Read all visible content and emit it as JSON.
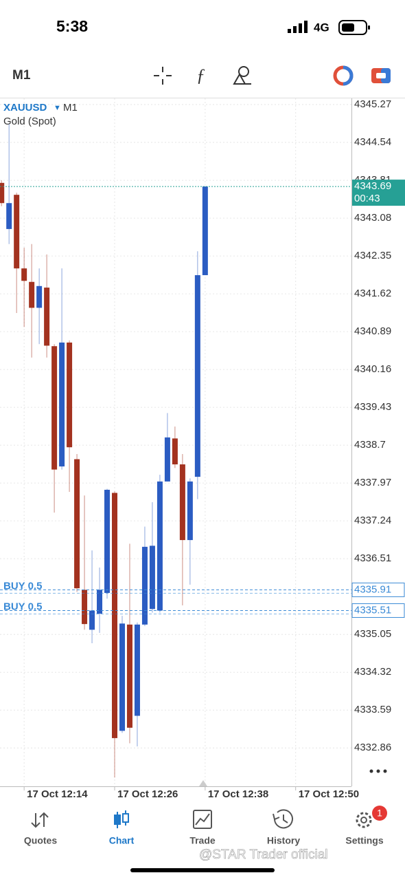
{
  "status": {
    "time": "5:38",
    "network": "4G"
  },
  "toolbar": {
    "timeframe": "M1"
  },
  "chart_data": {
    "type": "candlestick",
    "symbol": "XAUUSD",
    "timeframe": "M1",
    "description": "Gold (Spot)",
    "up_color": "#2b5cc2",
    "down_color": "#a3321f",
    "open": [
      4343.76,
      4342.87,
      4343.53,
      4342.11,
      4341.85,
      4341.35,
      4341.74,
      4340.61,
      4338.29,
      4340.68,
      4338.43,
      4335.91,
      4335.14,
      4335.45,
      4335.85,
      4337.78,
      4333.19,
      4335.24,
      4333.48,
      4335.24,
      4335.54,
      4335.51,
      4338.0,
      4338.83,
      4338.33,
      4336.87,
      4338.09,
      4341.98
    ],
    "high": [
      4343.81,
      4344.9,
      4343.57,
      4342.51,
      4342.58,
      4342.11,
      4342.38,
      4340.65,
      4342.11,
      4340.72,
      4338.53,
      4337.73,
      4336.67,
      4336.34,
      4337.86,
      4337.81,
      4335.41,
      4336.8,
      4335.28,
      4337.13,
      4337.6,
      4338.13,
      4339.32,
      4339.06,
      4338.53,
      4338.06,
      4342.44,
      4343.69
    ],
    "low": [
      4343.31,
      4342.58,
      4341.25,
      4340.98,
      4340.39,
      4340.65,
      4340.39,
      4337.4,
      4338.23,
      4337.8,
      4335.87,
      4335.14,
      4334.88,
      4335.08,
      4335.74,
      4332.29,
      4333.15,
      4332.95,
      4332.89,
      4335.21,
      4335.47,
      4335.47,
      4338.0,
      4338.26,
      4335.61,
      4336.01,
      4337.66,
      4341.98
    ],
    "close": [
      4343.37,
      4343.37,
      4342.11,
      4341.87,
      4341.35,
      4341.77,
      4340.62,
      4338.23,
      4340.68,
      4338.66,
      4335.94,
      4335.25,
      4335.51,
      4335.91,
      4337.84,
      4333.05,
      4335.26,
      4333.25,
      4335.24,
      4336.74,
      4336.76,
      4338.0,
      4338.85,
      4338.33,
      4336.87,
      4338.0,
      4341.98,
      4343.69
    ],
    "ylim": [
      4332.12,
      4345.39
    ],
    "yticks": [
      4345.27,
      4344.54,
      4343.81,
      4343.08,
      4342.35,
      4341.62,
      4340.89,
      4340.16,
      4339.43,
      4338.7,
      4337.97,
      4337.24,
      4336.51,
      4335.05,
      4334.32,
      4333.59,
      4332.86
    ],
    "xlim": [
      -0.2,
      46.4
    ],
    "xticks": [
      {
        "value": 3,
        "label": "17 Oct 12:14"
      },
      {
        "value": 15,
        "label": "17 Oct 12:26"
      },
      {
        "value": 27,
        "label": "17 Oct 12:38"
      },
      {
        "value": 39,
        "label": "17 Oct 12:50"
      }
    ],
    "grid": true,
    "last": {
      "value": 4343.69,
      "countdown": "00:43",
      "color": "#26a095"
    },
    "orders": [
      {
        "label": "BUY 0.5",
        "price": 4335.91
      },
      {
        "label": "BUY 0.5",
        "price": 4335.51
      }
    ],
    "order_color": "#3a8ad6"
  },
  "tabs": [
    {
      "label": "Quotes"
    },
    {
      "label": "Chart",
      "active": true
    },
    {
      "label": "Trade"
    },
    {
      "label": "History"
    },
    {
      "label": "Settings",
      "badge": 1
    }
  ],
  "watermark": "@STAR Trader official"
}
